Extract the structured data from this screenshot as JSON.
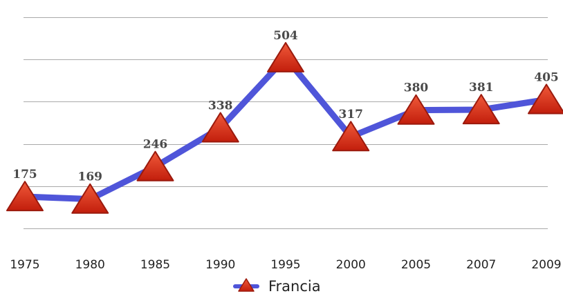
{
  "chart_data": {
    "type": "line",
    "title": "",
    "xlabel": "",
    "ylabel": "",
    "categories": [
      "1975",
      "1980",
      "1985",
      "1990",
      "1995",
      "2000",
      "2005",
      "2007",
      "2009"
    ],
    "series": [
      {
        "name": "Francia",
        "values": [
          175,
          169,
          246,
          338,
          504,
          317,
          380,
          381,
          405
        ],
        "labels": [
          "175",
          "169",
          "246",
          "338",
          "504",
          "317",
          "380",
          "381",
          "405"
        ],
        "color": "#4f55d9",
        "marker": "triangle",
        "marker_color": "#d42d14"
      }
    ],
    "ylim": [
      0,
      600
    ],
    "y_gridlines": [
      100,
      200,
      300,
      400,
      500,
      600
    ],
    "grid": true,
    "y_tick_labels_shown": false,
    "legend": {
      "position": "bottom-center",
      "entries": [
        "Francia"
      ]
    }
  }
}
